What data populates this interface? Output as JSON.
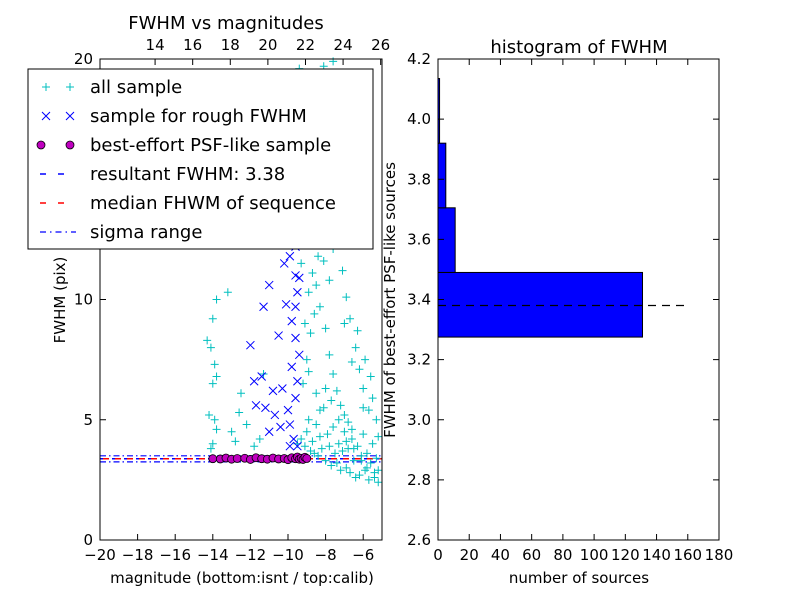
{
  "colors": {
    "all_sample": "#00bfbf",
    "rough": "#0000ff",
    "best_face": "#bf00bf",
    "resultant_line": "#0000ff",
    "median_line": "#ff0000",
    "sigma_line": "#0000ff",
    "hist_bar": "#0000ff"
  },
  "chart_data": [
    {
      "type": "scatter",
      "title": "FWHM vs magnitudes",
      "xlabel": "magnitude (bottom:isnt / top:calib)",
      "ylabel": "FWHM (pix)",
      "xlim": [
        -20,
        -5
      ],
      "ylim": [
        0,
        20
      ],
      "x_ticks": [
        "−20",
        "−18",
        "−16",
        "−14",
        "−12",
        "−10",
        "−8",
        "−6"
      ],
      "x_tick_values": [
        -20,
        -18,
        -16,
        -14,
        -12,
        -10,
        -8,
        -6
      ],
      "y_ticks": [
        "0",
        "5",
        "10",
        "15",
        "20"
      ],
      "y_tick_values": [
        0,
        5,
        10,
        15,
        20
      ],
      "top_ticks": [
        "14",
        "16",
        "18",
        "20",
        "22",
        "24",
        "26"
      ],
      "top_tick_values": [
        -17.07,
        -15.07,
        -13.07,
        -11.07,
        -9.07,
        -7.07,
        -5.07
      ],
      "legend_position": "upper-left",
      "legend": [
        {
          "label": "all sample",
          "marker": "plus"
        },
        {
          "label": "sample for rough FWHM",
          "marker": "x"
        },
        {
          "label": "best-effort PSF-like sample",
          "marker": "circle"
        },
        {
          "label": "resultant FWHM: 3.38",
          "marker": "dashed"
        },
        {
          "label": "median FHWM of sequence",
          "marker": "dashed-red"
        },
        {
          "label": "sigma range",
          "marker": "dashdot"
        }
      ],
      "resultant_fwhm": 3.38,
      "median_fwhm": 3.38,
      "sigma_range": [
        3.25,
        3.5
      ],
      "series": [
        {
          "name": "all sample",
          "marker": "plus",
          "points": [
            [
              -14.3,
              8.3
            ],
            [
              -14.1,
              8.0
            ],
            [
              -14.0,
              6.5
            ],
            [
              -13.8,
              6.8
            ],
            [
              -13.9,
              7.3
            ],
            [
              -14.2,
              5.2
            ],
            [
              -13.9,
              5.0
            ],
            [
              -14.0,
              4.0
            ],
            [
              -13.8,
              4.6
            ],
            [
              -14.1,
              3.8
            ],
            [
              -13.8,
              10.0
            ],
            [
              -14.0,
              9.2
            ],
            [
              -13.2,
              10.3
            ],
            [
              -13.0,
              4.5
            ],
            [
              -12.8,
              4.1
            ],
            [
              -12.6,
              5.3
            ],
            [
              -12.5,
              6.1
            ],
            [
              -12.2,
              4.8
            ],
            [
              -11.8,
              3.9
            ],
            [
              -11.5,
              4.2
            ],
            [
              -11.3,
              6.9
            ],
            [
              -13.1,
              19.3
            ],
            [
              -11.2,
              19.0
            ],
            [
              -12.5,
              19.4
            ],
            [
              -12.0,
              18.8
            ],
            [
              -10.1,
              19.4
            ],
            [
              -9.4,
              19.6
            ],
            [
              -8.6,
              19.3
            ],
            [
              -8.1,
              19.7
            ],
            [
              -7.6,
              19.9
            ],
            [
              -9.5,
              4.0
            ],
            [
              -9.3,
              4.2
            ],
            [
              -9.1,
              3.9
            ],
            [
              -9.0,
              4.5
            ],
            [
              -8.9,
              5.0
            ],
            [
              -8.8,
              3.7
            ],
            [
              -8.7,
              4.1
            ],
            [
              -8.6,
              3.6
            ],
            [
              -8.5,
              4.8
            ],
            [
              -8.4,
              3.5
            ],
            [
              -8.3,
              4.3
            ],
            [
              -8.2,
              3.8
            ],
            [
              -8.1,
              5.5
            ],
            [
              -8.0,
              3.3
            ],
            [
              -7.9,
              4.4
            ],
            [
              -7.8,
              3.9
            ],
            [
              -7.7,
              3.1
            ],
            [
              -7.6,
              4.7
            ],
            [
              -7.5,
              3.6
            ],
            [
              -7.4,
              3.2
            ],
            [
              -7.3,
              4.0
            ],
            [
              -7.2,
              2.9
            ],
            [
              -7.1,
              3.7
            ],
            [
              -7.0,
              4.5
            ],
            [
              -6.9,
              3.0
            ],
            [
              -6.8,
              3.8
            ],
            [
              -6.7,
              2.8
            ],
            [
              -6.6,
              4.2
            ],
            [
              -6.5,
              3.3
            ],
            [
              -6.4,
              2.6
            ],
            [
              -6.3,
              3.9
            ],
            [
              -6.2,
              2.7
            ],
            [
              -6.1,
              3.5
            ],
            [
              -6.0,
              4.4
            ],
            [
              -5.9,
              2.9
            ],
            [
              -5.8,
              3.6
            ],
            [
              -5.7,
              2.5
            ],
            [
              -5.6,
              3.2
            ],
            [
              -5.5,
              4.0
            ],
            [
              -5.4,
              2.6
            ],
            [
              -5.3,
              3.4
            ],
            [
              -5.2,
              2.9
            ],
            [
              -9.2,
              6.5
            ],
            [
              -9.0,
              7.5
            ],
            [
              -8.8,
              8.6
            ],
            [
              -8.6,
              9.4
            ],
            [
              -8.5,
              10.6
            ],
            [
              -8.4,
              11.8
            ],
            [
              -8.3,
              12.7
            ],
            [
              -8.2,
              13.6
            ],
            [
              -8.1,
              14.6
            ],
            [
              -8.7,
              15.7
            ],
            [
              -8.4,
              16.8
            ],
            [
              -8.6,
              17.9
            ],
            [
              -9.1,
              9.0
            ],
            [
              -8.9,
              10.3
            ],
            [
              -8.7,
              11.1
            ],
            [
              -8.3,
              9.7
            ],
            [
              -8.0,
              8.8
            ],
            [
              -7.8,
              7.7
            ],
            [
              -7.6,
              6.9
            ],
            [
              -7.4,
              6.2
            ],
            [
              -7.2,
              5.6
            ],
            [
              -7.0,
              5.2
            ],
            [
              -6.8,
              4.9
            ],
            [
              -6.6,
              4.6
            ],
            [
              -8.9,
              7.0
            ],
            [
              -8.5,
              6.1
            ],
            [
              -8.0,
              6.3
            ],
            [
              -7.7,
              5.8
            ],
            [
              -7.3,
              5.0
            ],
            [
              -6.9,
              4.1
            ],
            [
              -6.5,
              3.8
            ],
            [
              -6.1,
              3.3
            ],
            [
              -5.8,
              3.0
            ],
            [
              -5.4,
              2.8
            ],
            [
              -5.2,
              2.4
            ],
            [
              -8.3,
              5.4
            ],
            [
              -9.3,
              11.5
            ],
            [
              -9.2,
              12.8
            ],
            [
              -9.1,
              14.0
            ],
            [
              -9.0,
              15.2
            ],
            [
              -8.9,
              16.2
            ],
            [
              -8.8,
              17.4
            ],
            [
              -8.2,
              17.1
            ],
            [
              -7.9,
              16.3
            ],
            [
              -7.7,
              15.1
            ],
            [
              -7.5,
              14.0
            ],
            [
              -7.3,
              12.7
            ],
            [
              -7.1,
              11.2
            ],
            [
              -6.9,
              10.1
            ],
            [
              -6.7,
              9.2
            ],
            [
              -6.4,
              8.0
            ],
            [
              -6.2,
              7.1
            ],
            [
              -6.0,
              6.3
            ],
            [
              -5.7,
              5.4
            ],
            [
              -5.5,
              5.9
            ],
            [
              -5.3,
              5.0
            ],
            [
              -5.6,
              6.8
            ],
            [
              -5.9,
              7.5
            ],
            [
              -6.3,
              8.7
            ],
            [
              -7.8,
              10.8
            ],
            [
              -8.1,
              11.6
            ],
            [
              -7.6,
              12.1
            ],
            [
              -7.0,
              9.0
            ],
            [
              -6.6,
              7.4
            ],
            [
              -6.0,
              5.5
            ],
            [
              -5.2,
              4.3
            ]
          ]
        },
        {
          "name": "sample for rough FWHM",
          "marker": "x",
          "points": [
            [
              -12.0,
              8.1
            ],
            [
              -11.8,
              6.6
            ],
            [
              -11.7,
              5.6
            ],
            [
              -11.4,
              6.8
            ],
            [
              -11.2,
              5.5
            ],
            [
              -11.0,
              4.5
            ],
            [
              -10.8,
              6.2
            ],
            [
              -10.7,
              5.2
            ],
            [
              -10.5,
              8.5
            ],
            [
              -10.3,
              6.3
            ],
            [
              -10.6,
              12.3
            ],
            [
              -10.2,
              11.5
            ],
            [
              -11.0,
              12.9
            ],
            [
              -10.0,
              5.4
            ],
            [
              -9.9,
              4.8
            ],
            [
              -9.8,
              7.2
            ],
            [
              -9.7,
              4.2
            ],
            [
              -9.6,
              5.9
            ],
            [
              -9.6,
              8.4
            ],
            [
              -9.6,
              9.7
            ],
            [
              -9.6,
              11.0
            ],
            [
              -9.6,
              12.2
            ],
            [
              -9.6,
              13.4
            ],
            [
              -9.6,
              14.5
            ],
            [
              -9.5,
              3.9
            ],
            [
              -9.5,
              6.6
            ],
            [
              -9.5,
              10.3
            ],
            [
              -9.5,
              15.6
            ],
            [
              -9.4,
              7.7
            ],
            [
              -9.4,
              10.9
            ],
            [
              -9.4,
              13.0
            ],
            [
              -9.8,
              9.1
            ],
            [
              -9.9,
              11.8
            ],
            [
              -10.0,
              13.9
            ],
            [
              -9.7,
              14.9
            ],
            [
              -9.7,
              16.0
            ],
            [
              -9.9,
              17.4
            ],
            [
              -9.6,
              18.5
            ],
            [
              -10.4,
              17.2
            ],
            [
              -11.1,
              14.5
            ],
            [
              -11.3,
              9.7
            ],
            [
              -12.0,
              17.3
            ],
            [
              -11.0,
              10.6
            ],
            [
              -10.1,
              9.8
            ],
            [
              -10.4,
              4.7
            ],
            [
              -9.9,
              3.9
            ]
          ]
        },
        {
          "name": "best-effort PSF-like sample",
          "marker": "circle",
          "points": [
            [
              -14.0,
              3.38
            ],
            [
              -13.6,
              3.37
            ],
            [
              -13.3,
              3.41
            ],
            [
              -13.0,
              3.36
            ],
            [
              -12.7,
              3.39
            ],
            [
              -12.3,
              3.4
            ],
            [
              -12.0,
              3.35
            ],
            [
              -11.7,
              3.42
            ],
            [
              -11.4,
              3.38
            ],
            [
              -11.1,
              3.36
            ],
            [
              -10.8,
              3.41
            ],
            [
              -10.5,
              3.37
            ],
            [
              -10.2,
              3.39
            ],
            [
              -10.0,
              3.34
            ],
            [
              -9.8,
              3.42
            ],
            [
              -9.6,
              3.38
            ],
            [
              -9.5,
              3.45
            ],
            [
              -9.4,
              3.36
            ],
            [
              -9.3,
              3.4
            ],
            [
              -9.2,
              3.35
            ],
            [
              -9.1,
              3.44
            ],
            [
              -9.0,
              3.39
            ]
          ]
        }
      ]
    },
    {
      "type": "bar",
      "orientation": "horizontal",
      "title": "histogram of FWHM",
      "xlabel": "number of sources",
      "ylabel": "FWHM of best-effort PSF-like sources",
      "xlim": [
        0,
        180
      ],
      "ylim": [
        2.6,
        4.2
      ],
      "x_ticks": [
        "0",
        "20",
        "40",
        "60",
        "80",
        "100",
        "120",
        "140",
        "160",
        "180"
      ],
      "x_tick_values": [
        0,
        20,
        40,
        60,
        80,
        100,
        120,
        140,
        160,
        180
      ],
      "y_ticks": [
        "2.6",
        "2.8",
        "3.0",
        "3.2",
        "3.4",
        "3.6",
        "3.8",
        "4.0",
        "4.2"
      ],
      "y_tick_values": [
        2.6,
        2.8,
        3.0,
        3.2,
        3.4,
        3.6,
        3.8,
        4.0,
        4.2
      ],
      "bins": [
        {
          "y0": 3.275,
          "y1": 3.49,
          "count": 131
        },
        {
          "y0": 3.49,
          "y1": 3.705,
          "count": 11
        },
        {
          "y0": 3.705,
          "y1": 3.92,
          "count": 5
        },
        {
          "y0": 3.92,
          "y1": 4.135,
          "count": 1
        }
      ],
      "reference_line": {
        "y": 3.38,
        "x_range": [
          0,
          158
        ],
        "style": "dashed"
      }
    }
  ]
}
